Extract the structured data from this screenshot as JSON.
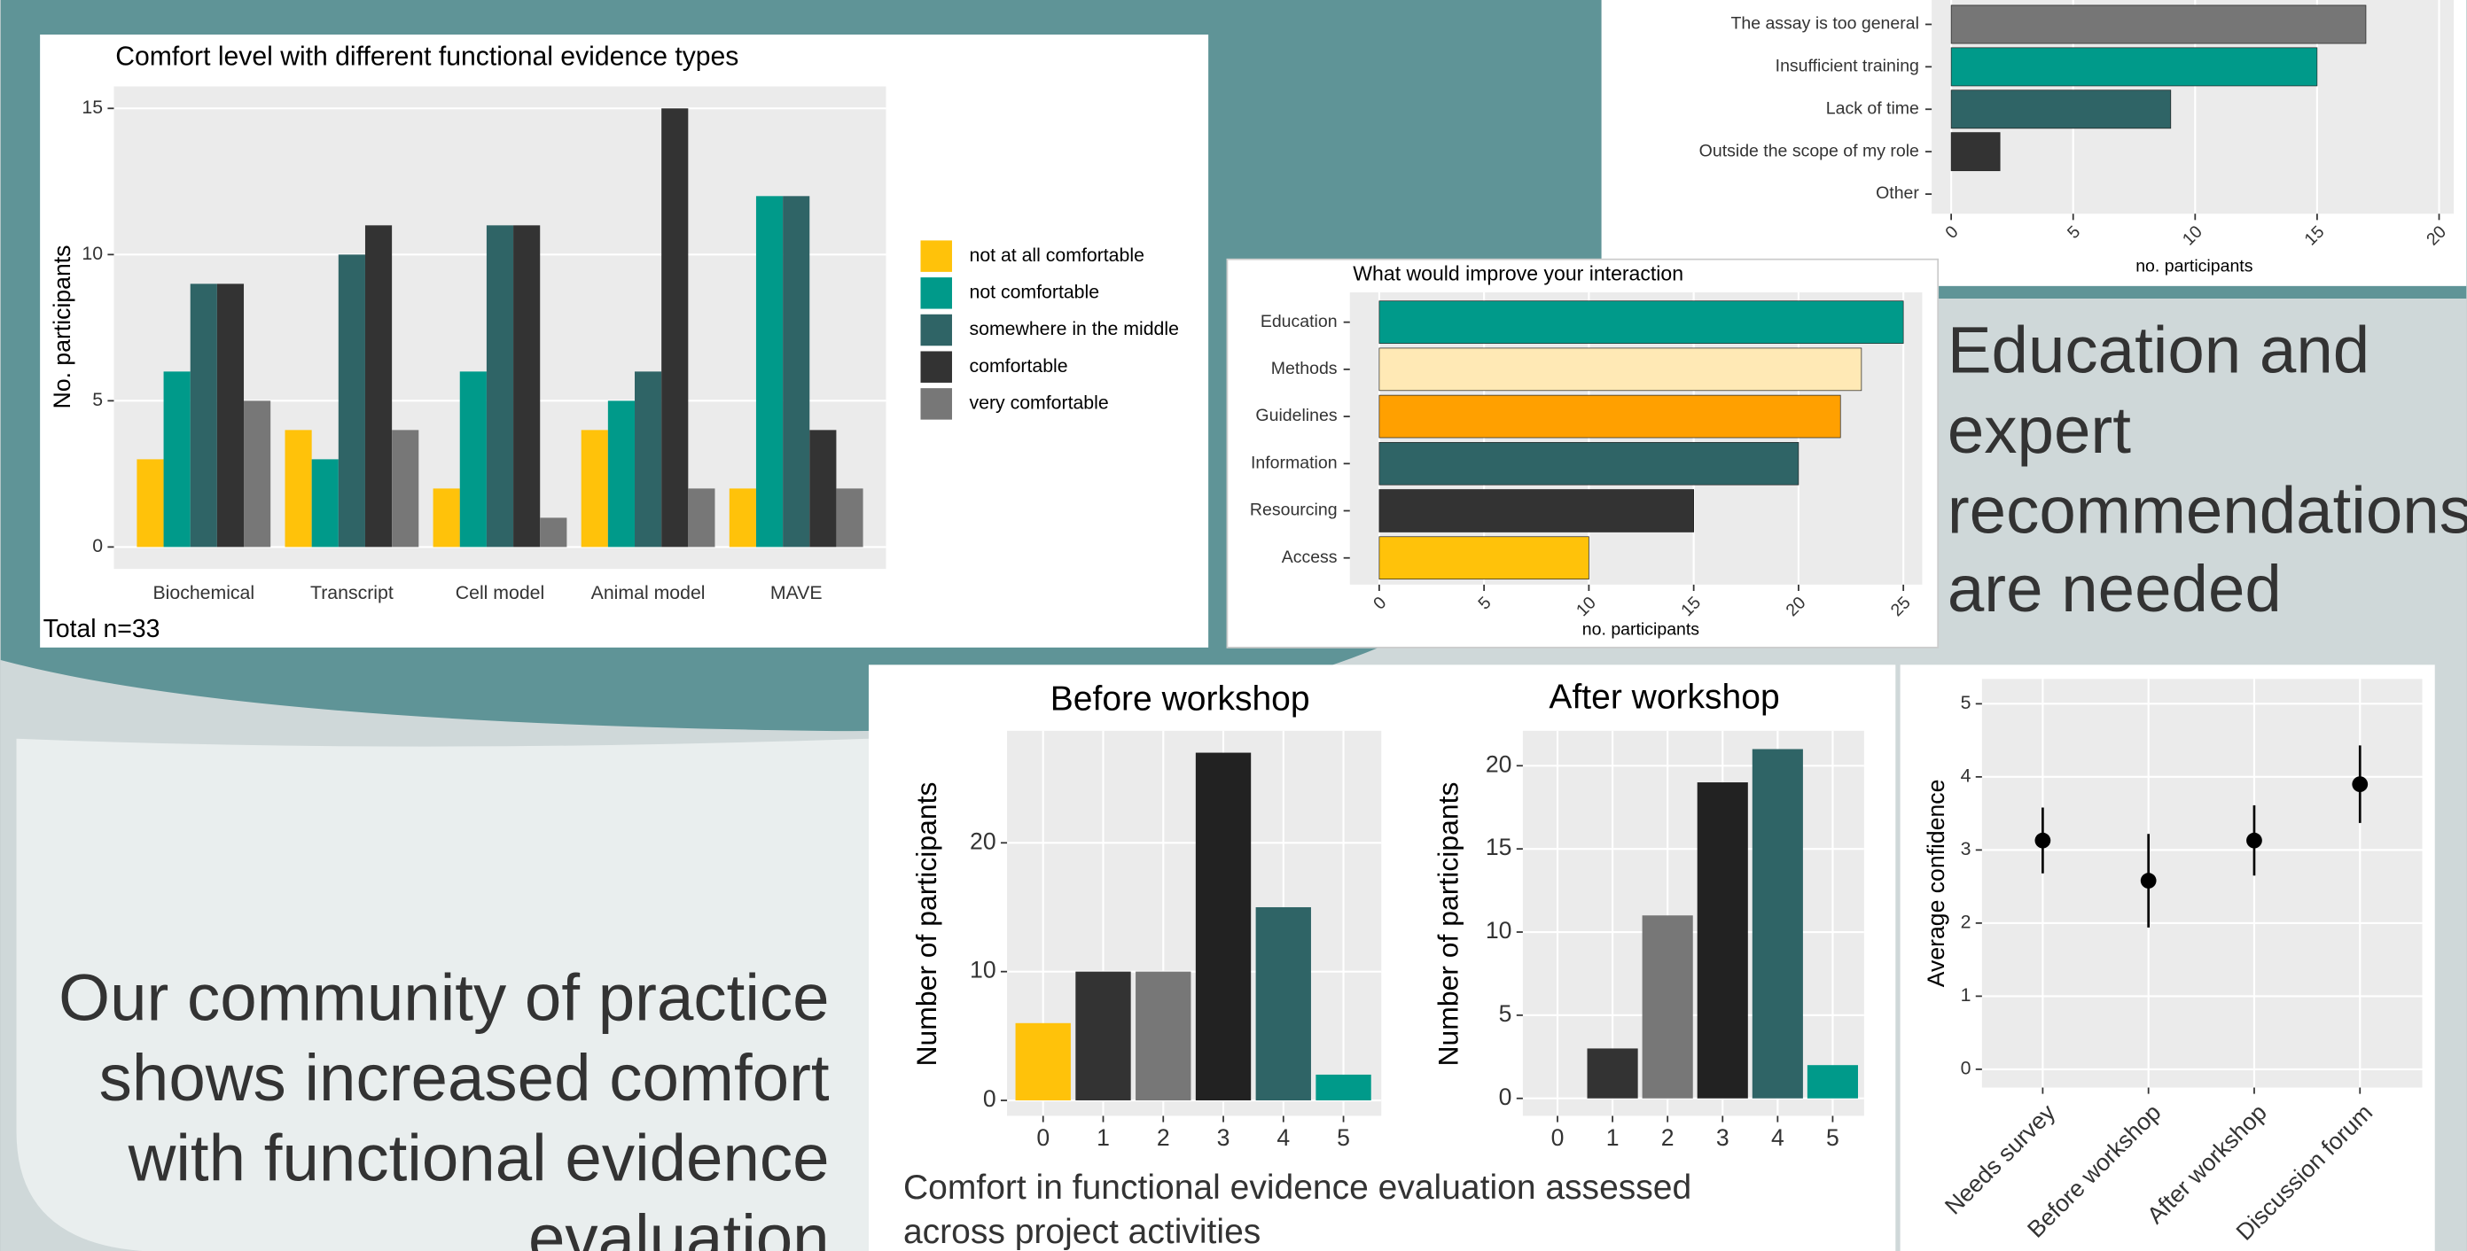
{
  "texts": {
    "heading_right": [
      "Education and",
      "expert",
      "recommendations",
      "are needed"
    ],
    "heading_left": [
      "Our community of practice",
      "shows increased comfort",
      "with functional evidence",
      "evaluation"
    ],
    "caption": [
      "Comfort in functional evidence evaluation assessed",
      "across project activities"
    ]
  },
  "chart_data": [
    {
      "type": "bar",
      "title": "Comfort level with different functional evidence types",
      "ylabel": "No. participants",
      "categories": [
        "Biochemical",
        "Transcript",
        "Cell model",
        "Animal model",
        "MAVE"
      ],
      "series": [
        {
          "name": "not at all comfortable",
          "color": "#ffc20a",
          "values": [
            3,
            4,
            2,
            4,
            2
          ]
        },
        {
          "name": "not comfortable",
          "color": "#009a8a",
          "values": [
            6,
            3,
            6,
            5,
            12
          ]
        },
        {
          "name": "somewhere in the middle",
          "color": "#2f6466",
          "values": [
            9,
            10,
            11,
            6,
            12
          ]
        },
        {
          "name": "comfortable",
          "color": "#333333",
          "values": [
            9,
            11,
            11,
            15,
            4
          ]
        },
        {
          "name": "very comfortable",
          "color": "#777777",
          "values": [
            5,
            4,
            1,
            2,
            2
          ]
        }
      ],
      "ylim": [
        -0.75,
        15.75
      ],
      "yticks": [
        0,
        5,
        10,
        15
      ],
      "grid": true,
      "legend": "right",
      "annotation": "Total n=33"
    },
    {
      "type": "barh",
      "xlabel": "no. participants",
      "categories": [
        "The assay is too general",
        "Insufficient training",
        "Lack of time",
        "Outside the scope of my role",
        "Other"
      ],
      "values": [
        17,
        15,
        9,
        2,
        0
      ],
      "colors": [
        "#767676",
        "#009a8a",
        "#2f6466",
        "#333333",
        "#333333"
      ],
      "xlim": [
        -0.8,
        20.6
      ],
      "xticks": [
        0,
        5,
        10,
        15,
        20
      ],
      "grid": true
    },
    {
      "type": "barh",
      "title": "What would improve your interaction",
      "xlabel": "no. participants",
      "categories": [
        "Education",
        "Methods",
        "Guidelines",
        "Information",
        "Resourcing",
        "Access"
      ],
      "values": [
        25,
        23,
        22,
        20,
        15,
        10
      ],
      "colors": [
        "#009a8a",
        "#ffe9b5",
        "#ffa000",
        "#2f6466",
        "#333333",
        "#ffc20a"
      ],
      "xlim": [
        -1.4,
        25.9
      ],
      "xticks": [
        0,
        5,
        10,
        15,
        20,
        25
      ],
      "grid": true
    },
    {
      "type": "bar",
      "title": "Before workshop",
      "ylabel": "Number of participants",
      "x": [
        0,
        1,
        2,
        3,
        4,
        5
      ],
      "values": [
        6,
        10,
        10,
        27,
        15,
        2
      ],
      "colors": [
        "#ffc20a",
        "#333333",
        "#777777",
        "#222222",
        "#2f6466",
        "#009a8a"
      ],
      "xlim": [
        -0.6,
        5.63
      ],
      "xticks": [
        0,
        1,
        2,
        3,
        4,
        5
      ],
      "ylim": [
        -1.2,
        28.7
      ],
      "yticks": [
        0,
        10,
        20
      ],
      "grid": true
    },
    {
      "type": "bar",
      "title": "After workshop",
      "ylabel": "Number of participants",
      "x": [
        0,
        1,
        2,
        3,
        4,
        5
      ],
      "values": [
        0,
        3,
        11,
        19,
        21,
        2
      ],
      "colors": [
        "#ffc20a",
        "#333333",
        "#777777",
        "#222222",
        "#2f6466",
        "#009a8a"
      ],
      "xlim": [
        -0.63,
        5.57
      ],
      "xticks": [
        0,
        1,
        2,
        3,
        4,
        5
      ],
      "ylim": [
        -1.05,
        22.1
      ],
      "yticks": [
        0,
        5,
        10,
        15,
        20
      ],
      "grid": true
    },
    {
      "type": "scatter",
      "ylabel": "Average confidence",
      "categories": [
        "Needs survey",
        "Before workshop",
        "After workshop",
        "Discussion forum"
      ],
      "values": [
        3.13,
        2.58,
        3.13,
        3.9
      ],
      "errors": [
        0.45,
        0.64,
        0.48,
        0.53
      ],
      "color": "#000000",
      "ylim": [
        -0.25,
        5.34
      ],
      "yticks": [
        0,
        1,
        2,
        3,
        4,
        5
      ],
      "grid": true
    }
  ]
}
